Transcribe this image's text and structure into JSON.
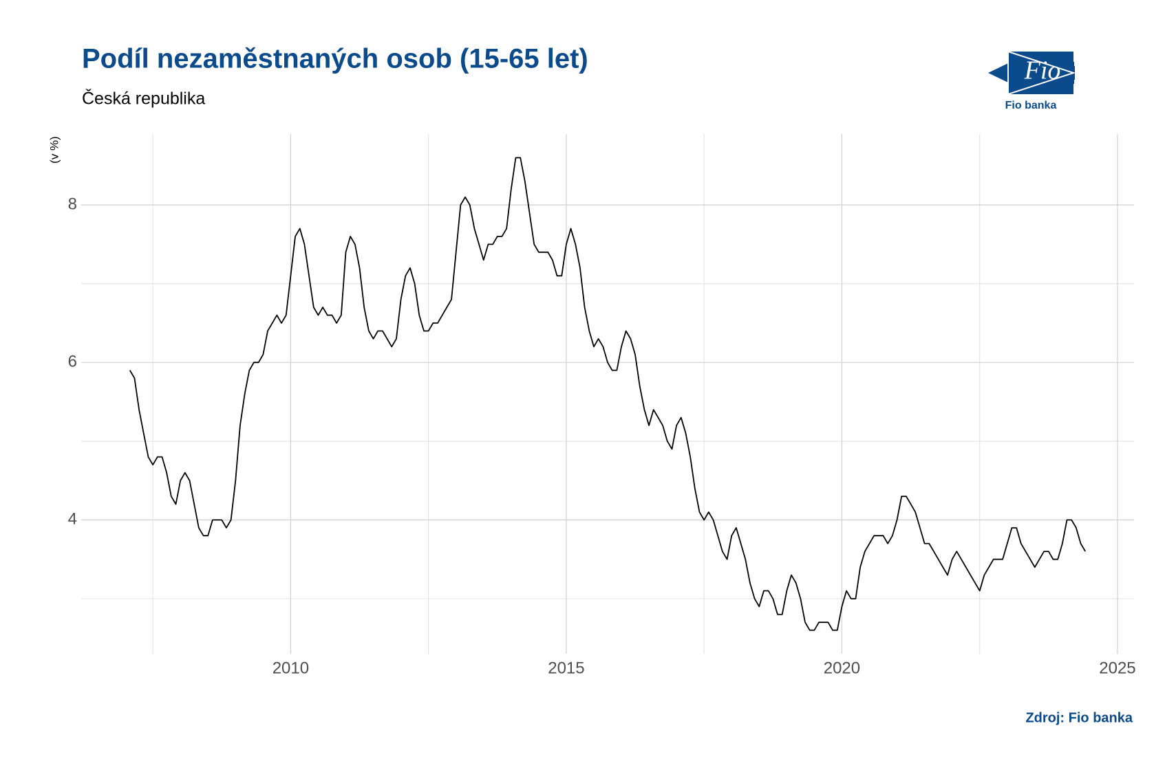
{
  "chart_data": {
    "type": "line",
    "title": "Podíl nezaměstnaných osob (15-65 let)",
    "subtitle": "Česká republika",
    "y_label": "(v %)",
    "source": "Zdroj: Fio banka",
    "logo": {
      "text": "Fio",
      "caption": "Fio banka"
    },
    "color": "#000000",
    "grid": true,
    "xlim": [
      2006.2,
      2025.3
    ],
    "xticks": [
      2010,
      2015,
      2020,
      2025
    ],
    "x_minor_ticks": [
      2007.5,
      2012.5,
      2017.5,
      2022.5
    ],
    "ylim": [
      2.3,
      8.9
    ],
    "yticks": [
      4,
      6,
      8
    ],
    "y_minor_ticks": [
      3,
      5,
      7
    ],
    "x": [
      2007.083,
      2007.167,
      2007.25,
      2007.333,
      2007.417,
      2007.5,
      2007.583,
      2007.667,
      2007.75,
      2007.833,
      2007.917,
      2008.0,
      2008.083,
      2008.167,
      2008.25,
      2008.333,
      2008.417,
      2008.5,
      2008.583,
      2008.667,
      2008.75,
      2008.833,
      2008.917,
      2009.0,
      2009.083,
      2009.167,
      2009.25,
      2009.333,
      2009.417,
      2009.5,
      2009.583,
      2009.667,
      2009.75,
      2009.833,
      2009.917,
      2010.0,
      2010.083,
      2010.167,
      2010.25,
      2010.333,
      2010.417,
      2010.5,
      2010.583,
      2010.667,
      2010.75,
      2010.833,
      2010.917,
      2011.0,
      2011.083,
      2011.167,
      2011.25,
      2011.333,
      2011.417,
      2011.5,
      2011.583,
      2011.667,
      2011.75,
      2011.833,
      2011.917,
      2012.0,
      2012.083,
      2012.167,
      2012.25,
      2012.333,
      2012.417,
      2012.5,
      2012.583,
      2012.667,
      2012.75,
      2012.833,
      2012.917,
      2013.0,
      2013.083,
      2013.167,
      2013.25,
      2013.333,
      2013.417,
      2013.5,
      2013.583,
      2013.667,
      2013.75,
      2013.833,
      2013.917,
      2014.0,
      2014.083,
      2014.167,
      2014.25,
      2014.333,
      2014.417,
      2014.5,
      2014.583,
      2014.667,
      2014.75,
      2014.833,
      2014.917,
      2015.0,
      2015.083,
      2015.167,
      2015.25,
      2015.333,
      2015.417,
      2015.5,
      2015.583,
      2015.667,
      2015.75,
      2015.833,
      2015.917,
      2016.0,
      2016.083,
      2016.167,
      2016.25,
      2016.333,
      2016.417,
      2016.5,
      2016.583,
      2016.667,
      2016.75,
      2016.833,
      2016.917,
      2017.0,
      2017.083,
      2017.167,
      2017.25,
      2017.333,
      2017.417,
      2017.5,
      2017.583,
      2017.667,
      2017.75,
      2017.833,
      2017.917,
      2018.0,
      2018.083,
      2018.167,
      2018.25,
      2018.333,
      2018.417,
      2018.5,
      2018.583,
      2018.667,
      2018.75,
      2018.833,
      2018.917,
      2019.0,
      2019.083,
      2019.167,
      2019.25,
      2019.333,
      2019.417,
      2019.5,
      2019.583,
      2019.667,
      2019.75,
      2019.833,
      2019.917,
      2020.0,
      2020.083,
      2020.167,
      2020.25,
      2020.333,
      2020.417,
      2020.5,
      2020.583,
      2020.667,
      2020.75,
      2020.833,
      2020.917,
      2021.0,
      2021.083,
      2021.167,
      2021.25,
      2021.333,
      2021.417,
      2021.5,
      2021.583,
      2021.667,
      2021.75,
      2021.833,
      2021.917,
      2022.0,
      2022.083,
      2022.167,
      2022.25,
      2022.333,
      2022.417,
      2022.5,
      2022.583,
      2022.667,
      2022.75,
      2022.833,
      2022.917,
      2023.0,
      2023.083,
      2023.167,
      2023.25,
      2023.333,
      2023.417,
      2023.5,
      2023.583,
      2023.667,
      2023.75,
      2023.833,
      2023.917,
      2024.0,
      2024.083,
      2024.167,
      2024.25,
      2024.333,
      2024.417
    ],
    "values": [
      5.9,
      5.8,
      5.4,
      5.1,
      4.8,
      4.7,
      4.8,
      4.8,
      4.6,
      4.3,
      4.2,
      4.5,
      4.6,
      4.5,
      4.2,
      3.9,
      3.8,
      3.8,
      4.0,
      4.0,
      4.0,
      3.9,
      4.0,
      4.5,
      5.2,
      5.6,
      5.9,
      6.0,
      6.0,
      6.1,
      6.4,
      6.5,
      6.6,
      6.5,
      6.6,
      7.1,
      7.6,
      7.7,
      7.5,
      7.1,
      6.7,
      6.6,
      6.7,
      6.6,
      6.6,
      6.5,
      6.6,
      7.4,
      7.6,
      7.5,
      7.2,
      6.7,
      6.4,
      6.3,
      6.4,
      6.4,
      6.3,
      6.2,
      6.3,
      6.8,
      7.1,
      7.2,
      7.0,
      6.6,
      6.4,
      6.4,
      6.5,
      6.5,
      6.6,
      6.7,
      6.8,
      7.4,
      8.0,
      8.1,
      8.0,
      7.7,
      7.5,
      7.3,
      7.5,
      7.5,
      7.6,
      7.6,
      7.7,
      8.2,
      8.6,
      8.6,
      8.3,
      7.9,
      7.5,
      7.4,
      7.4,
      7.4,
      7.3,
      7.1,
      7.1,
      7.5,
      7.7,
      7.5,
      7.2,
      6.7,
      6.4,
      6.2,
      6.3,
      6.2,
      6.0,
      5.9,
      5.9,
      6.2,
      6.4,
      6.3,
      6.1,
      5.7,
      5.4,
      5.2,
      5.4,
      5.3,
      5.2,
      5.0,
      4.9,
      5.2,
      5.3,
      5.1,
      4.8,
      4.4,
      4.1,
      4.0,
      4.1,
      4.0,
      3.8,
      3.6,
      3.5,
      3.8,
      3.9,
      3.7,
      3.5,
      3.2,
      3.0,
      2.9,
      3.1,
      3.1,
      3.0,
      2.8,
      2.8,
      3.1,
      3.3,
      3.2,
      3.0,
      2.7,
      2.6,
      2.6,
      2.7,
      2.7,
      2.7,
      2.6,
      2.6,
      2.9,
      3.1,
      3.0,
      3.0,
      3.4,
      3.6,
      3.7,
      3.8,
      3.8,
      3.8,
      3.7,
      3.8,
      4.0,
      4.3,
      4.3,
      4.2,
      4.1,
      3.9,
      3.7,
      3.7,
      3.6,
      3.5,
      3.4,
      3.3,
      3.5,
      3.6,
      3.5,
      3.4,
      3.3,
      3.2,
      3.1,
      3.3,
      3.4,
      3.5,
      3.5,
      3.5,
      3.7,
      3.9,
      3.9,
      3.7,
      3.6,
      3.5,
      3.4,
      3.5,
      3.6,
      3.6,
      3.5,
      3.5,
      3.7,
      4.0,
      4.0,
      3.9,
      3.7,
      3.6
    ]
  }
}
